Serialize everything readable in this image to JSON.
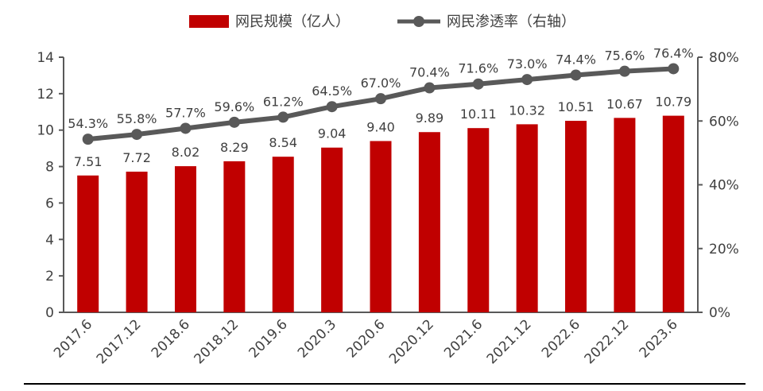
{
  "chart_data": {
    "type": "bar",
    "categories": [
      "2017.6",
      "2017.12",
      "2018.6",
      "2018.12",
      "2019.6",
      "2020.3",
      "2020.6",
      "2020.12",
      "2021.6",
      "2021.12",
      "2022.6",
      "2022.12",
      "2023.6"
    ],
    "series": [
      {
        "name": "网民规模（亿人）",
        "type": "bar",
        "axis": "left",
        "color": "#C00000",
        "values": [
          7.51,
          7.72,
          8.02,
          8.29,
          8.54,
          9.04,
          9.4,
          9.89,
          10.11,
          10.32,
          10.51,
          10.67,
          10.79
        ],
        "labels": [
          "7.51",
          "7.72",
          "8.02",
          "8.29",
          "8.54",
          "9.04",
          "9.40",
          "9.89",
          "10.11",
          "10.32",
          "10.51",
          "10.67",
          "10.79"
        ]
      },
      {
        "name": "网民渗透率（右轴）",
        "type": "line",
        "axis": "right",
        "color": "#595959",
        "values": [
          54.3,
          55.8,
          57.7,
          59.6,
          61.2,
          64.5,
          67.0,
          70.4,
          71.6,
          73.0,
          74.4,
          75.6,
          76.4
        ],
        "labels": [
          "54.3%",
          "55.8%",
          "57.7%",
          "59.6%",
          "61.2%",
          "64.5%",
          "67.0%",
          "70.4%",
          "71.6%",
          "73.0%",
          "74.4%",
          "75.6%",
          "76.4%"
        ]
      }
    ],
    "y_left": {
      "min": 0,
      "max": 14,
      "ticks": [
        "0",
        "2",
        "4",
        "6",
        "8",
        "10",
        "12",
        "14"
      ]
    },
    "y_right": {
      "min": 0,
      "max": 80,
      "ticks": [
        "0%",
        "20%",
        "40%",
        "60%",
        "80%"
      ]
    },
    "legend_position": "top-center",
    "grid": false
  }
}
